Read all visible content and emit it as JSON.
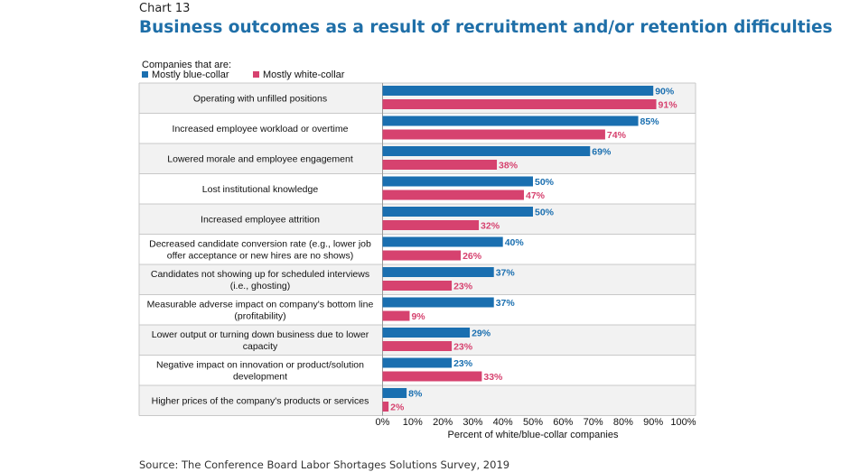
{
  "chart_number": "Chart 13",
  "title": "Business outcomes as a result of recruitment and/or retention difficulties",
  "legend_title": "Companies that are:",
  "source": "Source: The Conference Board Labor Shortages Solutions Survey, 2019",
  "colors": {
    "blue": "#1a6fb0",
    "pink": "#d6426f",
    "band": "#f2f2f2",
    "border": "#c8c8c8"
  },
  "chart_data": {
    "type": "bar",
    "orientation": "horizontal",
    "categories": [
      [
        "Operating with unfilled positions"
      ],
      [
        "Increased employee workload or overtime"
      ],
      [
        "Lowered morale and employee engagement"
      ],
      [
        "Lost institutional knowledge"
      ],
      [
        "Increased employee attrition"
      ],
      [
        "Decreased candidate conversion rate (e.g., lower job",
        "offer acceptance or new hires are no shows)"
      ],
      [
        "Candidates not showing up for scheduled interviews",
        "(i.e., ghosting)"
      ],
      [
        "Measurable adverse impact on company's bottom line",
        "(profitability)"
      ],
      [
        "Lower output or turning down business due to lower",
        "capacity"
      ],
      [
        "Negative impact on innovation or product/solution",
        "development"
      ],
      [
        "Higher prices of the company's products or services"
      ]
    ],
    "series": [
      {
        "name": "Mostly blue-collar",
        "color": "#1a6fb0",
        "values": [
          90,
          85,
          69,
          50,
          50,
          40,
          37,
          37,
          29,
          23,
          8
        ]
      },
      {
        "name": "Mostly white-collar",
        "color": "#d6426f",
        "values": [
          91,
          74,
          38,
          47,
          32,
          26,
          23,
          9,
          23,
          33,
          2
        ]
      }
    ],
    "xlabel": "Percent of white/blue-collar companies",
    "xlim": [
      0,
      100
    ],
    "xticks": [
      "0%",
      "10%",
      "20%",
      "30%",
      "40%",
      "50%",
      "60%",
      "70%",
      "80%",
      "90%",
      "100%"
    ],
    "value_suffix": "%",
    "legend_position": "top-left"
  }
}
